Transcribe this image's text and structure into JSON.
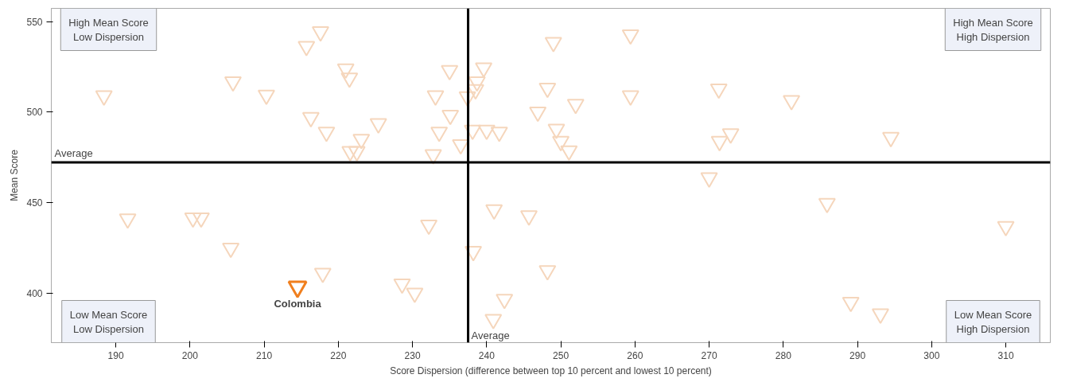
{
  "chart_data": {
    "type": "scatter",
    "xlabel": "Score Dispersion (difference between top 10 percent and lowest 10 percent)",
    "ylabel": "Mean Score",
    "xlim": [
      181.3,
      316
    ],
    "ylim": [
      372.6,
      557.3
    ],
    "xticks": [
      190,
      200,
      210,
      220,
      230,
      240,
      250,
      260,
      270,
      280,
      290,
      300,
      310
    ],
    "yticks": [
      400,
      450,
      500,
      550
    ],
    "grid": false,
    "marker": "triangle_down",
    "series": [
      {
        "color": "#f5d6bc",
        "x": [
          188.4,
          191.6,
          200.4,
          201.5,
          205.8,
          205.5,
          210.3,
          215.7,
          217.6,
          216.3,
          218.4,
          217.9,
          221,
          221.5,
          221.6,
          222.5,
          223.1,
          225.4,
          228.6,
          230.3,
          232.2,
          233.1,
          233.6,
          232.8,
          235,
          235.1,
          236.5,
          237.4,
          238.2,
          238.5,
          238.7,
          239.6,
          238.1,
          240,
          241.7,
          241,
          240.9,
          242.4,
          245.7,
          246.9,
          248.2,
          248.2,
          249,
          249.4,
          250,
          251.1,
          252,
          259.4,
          259.4,
          270,
          271.3,
          271.4,
          272.9,
          281.1,
          285.9,
          289.1,
          293.1,
          294.5,
          310
        ],
        "values": [
          509,
          441,
          441.5,
          441.5,
          516.7,
          424.8,
          509.4,
          536.3,
          544.4,
          497,
          488.9,
          411,
          523.9,
          518.8,
          478.2,
          478.2,
          485,
          493.6,
          405,
          400,
          437.6,
          509,
          488.9,
          476.5,
          523,
          498.3,
          482,
          508.5,
          423,
          512.4,
          516.7,
          524.4,
          490,
          490,
          488.9,
          446,
          385.5,
          396.6,
          442.7,
          500,
          513.2,
          412.4,
          538.5,
          490.6,
          483.8,
          478.6,
          504.3,
          542.7,
          509,
          463.7,
          512.8,
          483.8,
          488,
          506.4,
          449.6,
          394.9,
          388.5,
          486,
          436.8
        ]
      },
      {
        "color": "#f07f1e",
        "x": [
          214.5
        ],
        "values": [
          403.4
        ]
      }
    ],
    "ref_lines": [
      {
        "axis": "x",
        "value": 237.5,
        "label": "Average",
        "color": "#000000"
      },
      {
        "axis": "y",
        "value": 472.2,
        "label": "Average",
        "color": "#000000"
      }
    ],
    "annotations": [
      "High Mean Score\nLow Dispersion",
      "High Mean Score\nHigh Dispersion",
      "Low Mean Score\nLow Dispersion",
      "Low Mean Score\nHigh Dispersion",
      {
        "text": "Colombia",
        "x": 214.5,
        "y": 403.4
      }
    ]
  }
}
